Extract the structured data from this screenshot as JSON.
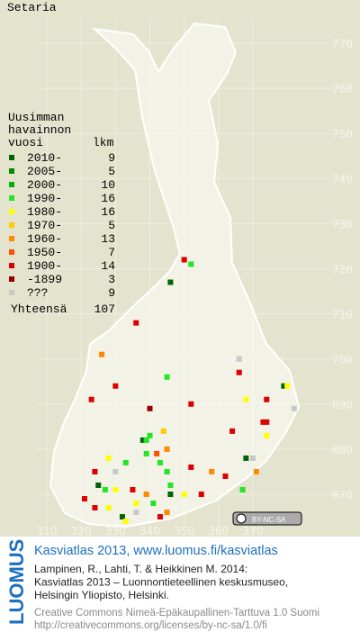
{
  "title": "Setaria",
  "legend": {
    "header": [
      "Uusimman",
      "havainnon",
      "vuosi"
    ],
    "count_header": "lkm",
    "rows": [
      {
        "label": "2010-",
        "count": 9,
        "color": "#006400"
      },
      {
        "label": "2005-",
        "count": 5,
        "color": "#008c00"
      },
      {
        "label": "2000-",
        "count": 10,
        "color": "#00b400"
      },
      {
        "label": "1990-",
        "count": 16,
        "color": "#22e622"
      },
      {
        "label": "1980-",
        "count": 16,
        "color": "#ffff00"
      },
      {
        "label": "1970-",
        "count": 5,
        "color": "#ffcc00"
      },
      {
        "label": "1960-",
        "count": 13,
        "color": "#ff8800"
      },
      {
        "label": "1950-",
        "count": 7,
        "color": "#ff5000"
      },
      {
        "label": "1900-",
        "count": 14,
        "color": "#dd0000"
      },
      {
        "label": "-1899",
        "count": 3,
        "color": "#960000"
      },
      {
        "label": "???",
        "count": 9,
        "color": "#c8c8c8"
      }
    ],
    "total_label": "Yhteensä",
    "total": 107
  },
  "map": {
    "xlim": [
      310,
      370
    ],
    "ylim": [
      670,
      770
    ],
    "xticks": [
      310,
      320,
      330,
      340,
      350,
      360,
      370
    ],
    "yticks": [
      670,
      680,
      690,
      700,
      710,
      720,
      730,
      740,
      750,
      760,
      770
    ],
    "points": [
      [
        350,
        722,
        8
      ],
      [
        352,
        721,
        3
      ],
      [
        346,
        717,
        0
      ],
      [
        336,
        708,
        8
      ],
      [
        326,
        701,
        6
      ],
      [
        366,
        700,
        10
      ],
      [
        366,
        697,
        8
      ],
      [
        379,
        694,
        0
      ],
      [
        380,
        694,
        4
      ],
      [
        330,
        694,
        8
      ],
      [
        345,
        696,
        3
      ],
      [
        323,
        691,
        8
      ],
      [
        352,
        690,
        8
      ],
      [
        368,
        691,
        4
      ],
      [
        374,
        691,
        8
      ],
      [
        382,
        689,
        10
      ],
      [
        373,
        686,
        8
      ],
      [
        374,
        686,
        8
      ],
      [
        340,
        689,
        9
      ],
      [
        344,
        684,
        5
      ],
      [
        364,
        684,
        8
      ],
      [
        340,
        683,
        3
      ],
      [
        338,
        682,
        0
      ],
      [
        339,
        682,
        3
      ],
      [
        345,
        680,
        6
      ],
      [
        339,
        679,
        3
      ],
      [
        342,
        679,
        7
      ],
      [
        374,
        683,
        4
      ],
      [
        370,
        678,
        10
      ],
      [
        368,
        678,
        0
      ],
      [
        371,
        675,
        6
      ],
      [
        328,
        678,
        4
      ],
      [
        343,
        677,
        3
      ],
      [
        345,
        675,
        3
      ],
      [
        333,
        677,
        3
      ],
      [
        324,
        675,
        8
      ],
      [
        330,
        675,
        10
      ],
      [
        352,
        676,
        8
      ],
      [
        358,
        675,
        6
      ],
      [
        362,
        674,
        8
      ],
      [
        346,
        672,
        3
      ],
      [
        325,
        672,
        0
      ],
      [
        327,
        671,
        3
      ],
      [
        330,
        671,
        4
      ],
      [
        335,
        671,
        8
      ],
      [
        339,
        670,
        6
      ],
      [
        346,
        670,
        0
      ],
      [
        350,
        670,
        4
      ],
      [
        355,
        670,
        8
      ],
      [
        367,
        671,
        3
      ],
      [
        321,
        669,
        8
      ],
      [
        324,
        667,
        8
      ],
      [
        336,
        668,
        4
      ],
      [
        341,
        668,
        3
      ],
      [
        345,
        666,
        6
      ],
      [
        328,
        667,
        4
      ],
      [
        332,
        665,
        0
      ],
      [
        333,
        664,
        4
      ],
      [
        343,
        665,
        8
      ],
      [
        336,
        666,
        10
      ]
    ]
  },
  "badge": "BY-NC-SA",
  "footer": {
    "brand": "LUOMUS",
    "link": "Kasviatlas 2013, www.luomus.fi/kasviatlas",
    "citation": [
      "Lampinen, R., Lahti, T. & Heikkinen M. 2014:",
      "Kasviatlas 2013 – Luonnontieteellinen keskusmuseo,",
      "Helsingin Yliopisto, Helsinki."
    ],
    "license": [
      "Creative Commons Nimeä-Epäkaupallinen-Tarttuva 1.0 Suomi",
      "http://creativecommons.org/licenses/by-nc-sa/1.0/fi"
    ]
  }
}
